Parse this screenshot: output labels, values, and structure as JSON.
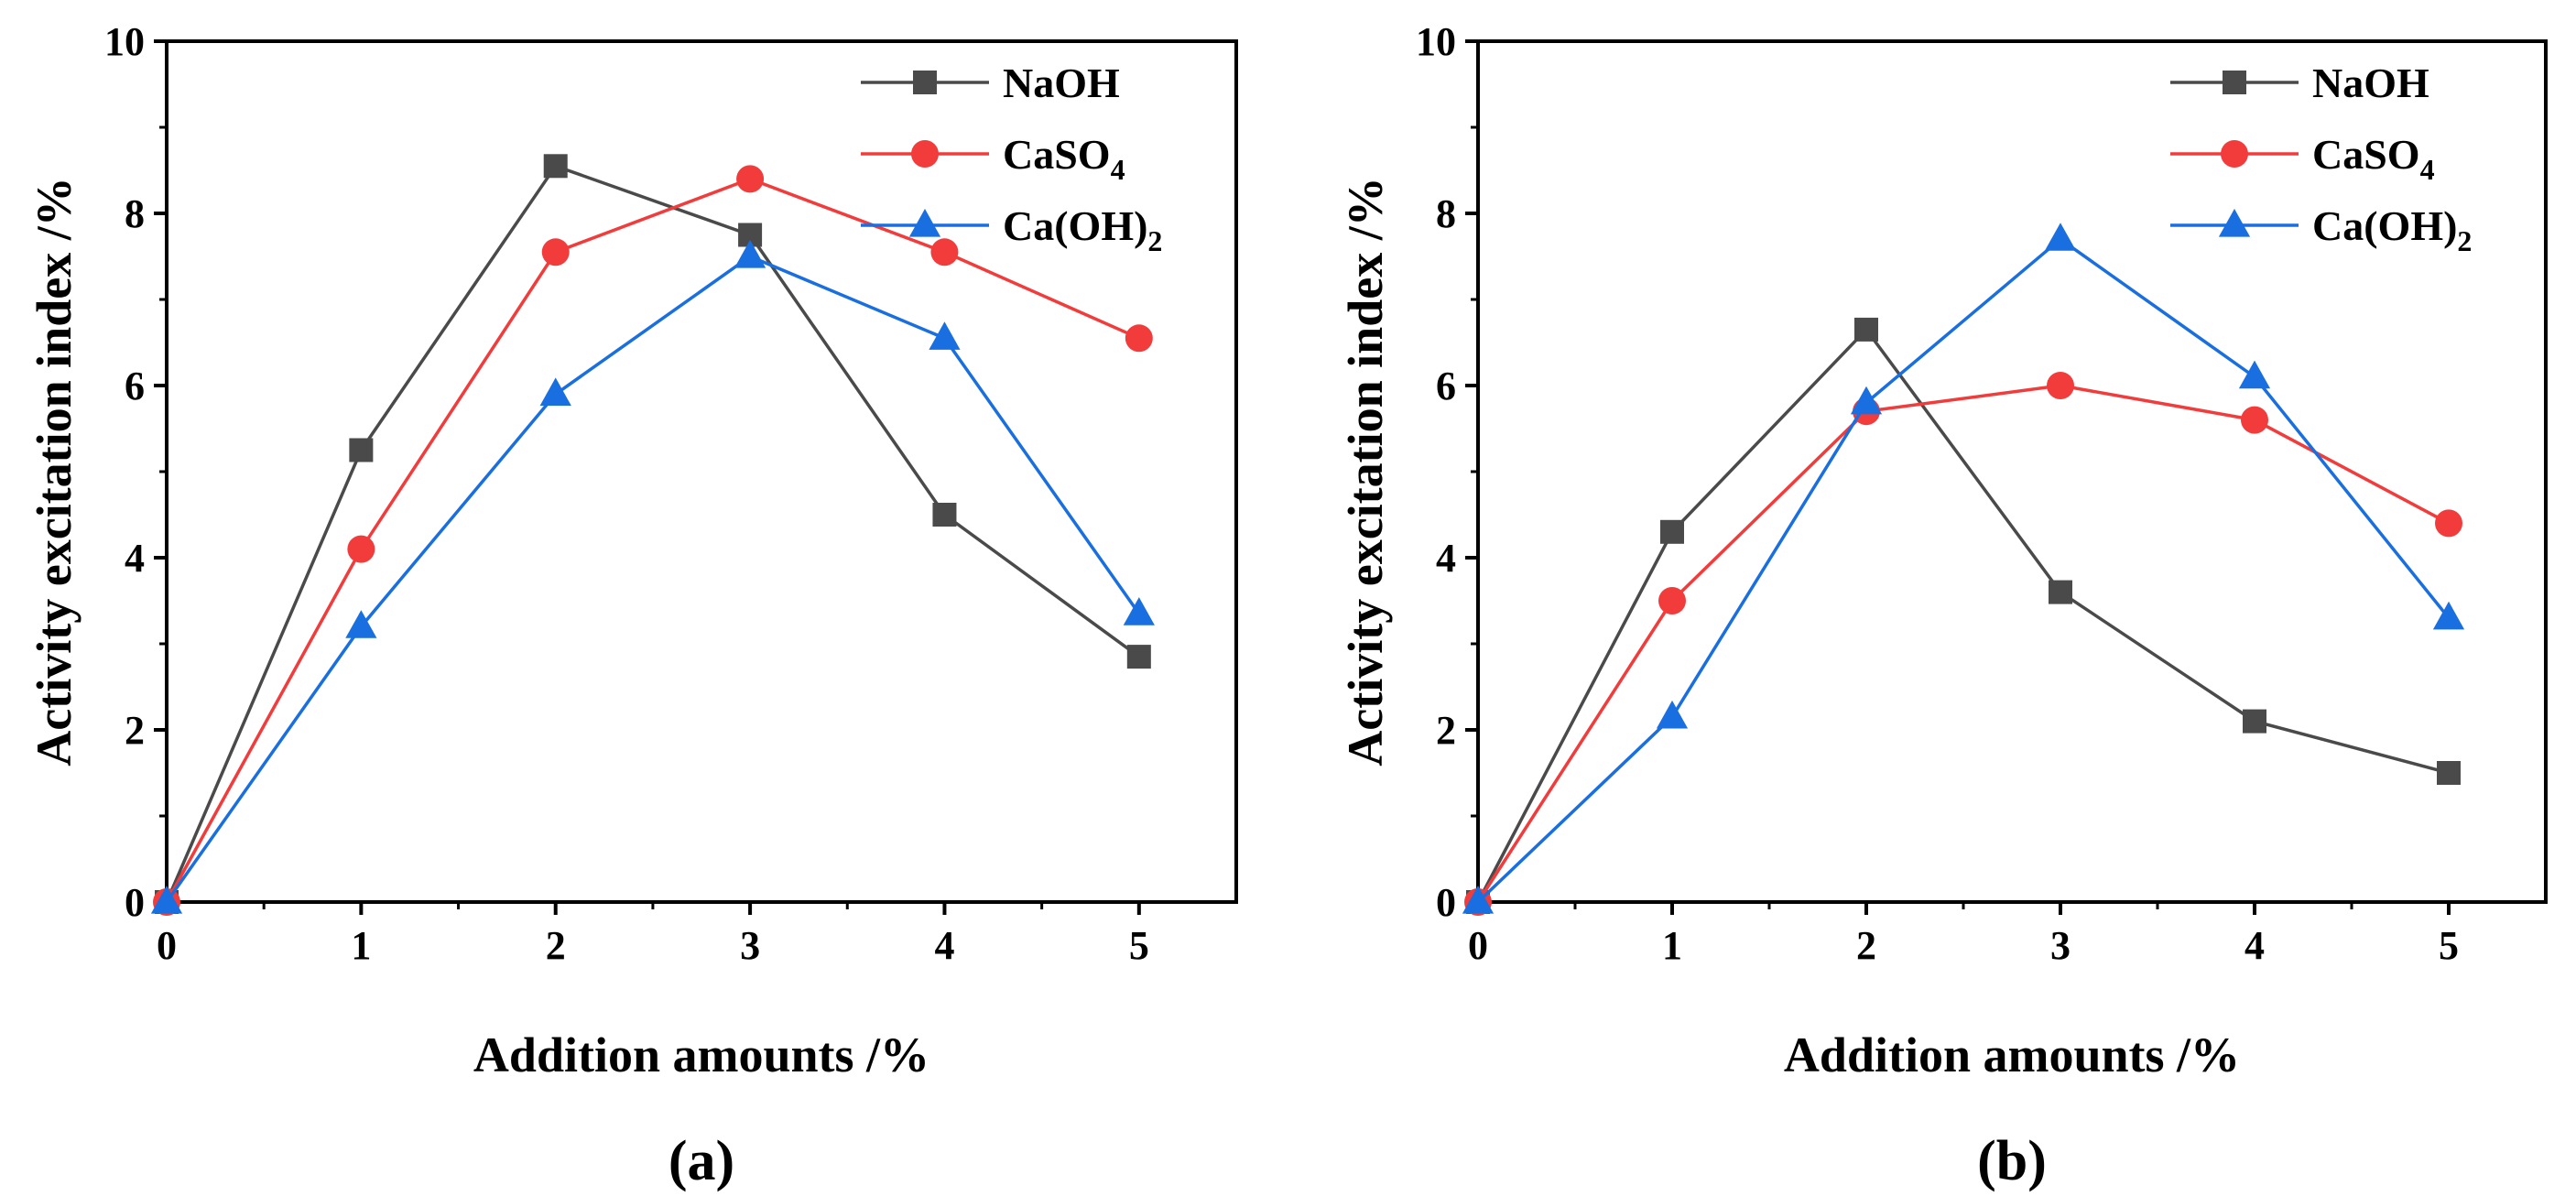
{
  "chart_data": [
    {
      "type": "line",
      "panel_label": "(a)",
      "xlabel": "Addition amounts /%",
      "ylabel": "Activity excitation index /%",
      "xlim": [
        0,
        5.5
      ],
      "ylim": [
        0,
        10
      ],
      "x_ticks": [
        "0",
        "1",
        "2",
        "3",
        "4",
        "5"
      ],
      "y_ticks": [
        "0",
        "2",
        "4",
        "6",
        "8",
        "10"
      ],
      "grid": false,
      "legend_position": "top-right",
      "x": [
        0,
        1,
        2,
        3,
        4,
        5
      ],
      "series": [
        {
          "name": "NaOH",
          "base": "NaOH",
          "sub": "",
          "marker": "square",
          "color": "#4a4a4a",
          "values": [
            0,
            5.25,
            8.55,
            7.75,
            4.5,
            2.85
          ]
        },
        {
          "name": "CaSO4",
          "base": "CaSO",
          "sub": "4",
          "marker": "circle",
          "color": "#f23c3c",
          "values": [
            0,
            4.1,
            7.55,
            8.4,
            7.55,
            6.55
          ]
        },
        {
          "name": "Ca(OH)2",
          "base": "Ca(OH)",
          "sub": "2",
          "marker": "triangle",
          "color": "#1a6fe0",
          "values": [
            0,
            3.2,
            5.9,
            7.5,
            6.55,
            3.35
          ]
        }
      ]
    },
    {
      "type": "line",
      "panel_label": "(b)",
      "xlabel": "Addition amounts /%",
      "ylabel": "Activity excitation index /%",
      "xlim": [
        0,
        5.5
      ],
      "ylim": [
        0,
        10
      ],
      "x_ticks": [
        "0",
        "1",
        "2",
        "3",
        "4",
        "5"
      ],
      "y_ticks": [
        "0",
        "2",
        "4",
        "6",
        "8",
        "10"
      ],
      "grid": false,
      "legend_position": "top-right",
      "x": [
        0,
        1,
        2,
        3,
        4,
        5
      ],
      "series": [
        {
          "name": "NaOH",
          "base": "NaOH",
          "sub": "",
          "marker": "square",
          "color": "#4a4a4a",
          "values": [
            0,
            4.3,
            6.65,
            3.6,
            2.1,
            1.5
          ]
        },
        {
          "name": "CaSO4",
          "base": "CaSO",
          "sub": "4",
          "marker": "circle",
          "color": "#f23c3c",
          "values": [
            0,
            3.5,
            5.7,
            6.0,
            5.6,
            4.4
          ]
        },
        {
          "name": "Ca(OH)2",
          "base": "Ca(OH)",
          "sub": "2",
          "marker": "triangle",
          "color": "#1a6fe0",
          "values": [
            0,
            2.15,
            5.8,
            7.7,
            6.1,
            3.3
          ]
        }
      ]
    }
  ]
}
